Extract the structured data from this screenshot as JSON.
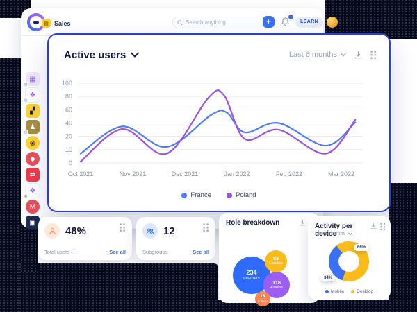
{
  "topbar": {
    "app_label": "Sales",
    "search_placeholder": "Search anything",
    "plus_label": "+",
    "learn_label": "LEARN",
    "notification_count": "1"
  },
  "sidebar": {
    "icons": [
      {
        "name": "app-icon-boards",
        "bg": "#efe9fa",
        "fg": "#8b5cf6",
        "glyph": "▦",
        "shape": "rounded",
        "badge": "clock"
      },
      {
        "name": "app-icon-blocks",
        "bg": "#ffffff",
        "fg": "#a855f7",
        "glyph": "❖",
        "shape": "rounded",
        "badge": "clock"
      },
      {
        "name": "app-icon-game",
        "bg": "#ffd333",
        "fg": "#1c1c1c",
        "glyph": "▞",
        "shape": "rounded",
        "badge": ""
      },
      {
        "name": "app-icon-money",
        "bg": "#a68f3d",
        "fg": "#ffffff",
        "glyph": "♟",
        "shape": "rounded",
        "badge": "clock"
      },
      {
        "name": "app-icon-swirl",
        "bg": "#ffd333",
        "fg": "#1c1c1c",
        "glyph": "֎",
        "shape": "circle",
        "badge": ""
      },
      {
        "name": "app-icon-media",
        "bg": "#e8505b",
        "fg": "#ffffff",
        "glyph": "◆",
        "shape": "circle",
        "badge": ""
      },
      {
        "name": "app-icon-shuffle",
        "bg": "#ee3b4b",
        "fg": "#ffffff",
        "glyph": "⇄",
        "shape": "rounded",
        "badge": ""
      },
      {
        "name": "app-icon-puzzle",
        "bg": "#ffffff",
        "fg": "#8b5cf6",
        "glyph": "❖",
        "shape": "rounded",
        "badge": "lock"
      },
      {
        "name": "app-icon-mail",
        "bg": "#e8505b",
        "fg": "#ffffff",
        "glyph": "M",
        "shape": "circle",
        "badge": ""
      },
      {
        "name": "app-icon-navy",
        "bg": "#1d2b4f",
        "fg": "#ffffff",
        "glyph": "▣",
        "shape": "rounded",
        "badge": ""
      }
    ]
  },
  "chart_card": {
    "title": "Active users",
    "range_label": "Last 6 months"
  },
  "chart_data": {
    "type": "line",
    "title": "Active users",
    "x_ticks": [
      "Oct 2021",
      "Nov 2021",
      "Dec 2021",
      "Jan 2022",
      "Feb 2022",
      "Mar 2022"
    ],
    "y_ticks": [
      0,
      10,
      20,
      40,
      60,
      80,
      100
    ],
    "y_axis_note": "tick labels 0,10,20,40,60,80,100 are evenly spaced (non-linear axis)",
    "grid": "horizontal",
    "legend_position": "bottom-center",
    "series": [
      {
        "name": "France",
        "color": "#4e7cf6",
        "points": [
          [
            0,
            7
          ],
          [
            0.8,
            35
          ],
          [
            1.65,
            12
          ],
          [
            2.5,
            52
          ],
          [
            2.8,
            56
          ],
          [
            3.15,
            26
          ],
          [
            3.8,
            40
          ],
          [
            4.7,
            13
          ],
          [
            5.27,
            41
          ]
        ]
      },
      {
        "name": "Poland",
        "color": "#9b51e0",
        "points": [
          [
            0,
            1
          ],
          [
            0.8,
            31
          ],
          [
            1.65,
            7
          ],
          [
            2.45,
            78
          ],
          [
            2.75,
            82
          ],
          [
            3.15,
            18
          ],
          [
            3.8,
            30
          ],
          [
            4.7,
            7
          ],
          [
            5.27,
            45
          ]
        ]
      }
    ]
  },
  "stat_cards": [
    {
      "value": "48%",
      "label": "Total users",
      "link": "See all",
      "icon": "user-icon",
      "icon_bg": "#fdeadd",
      "icon_color": "#f2946a"
    },
    {
      "value": "12",
      "label": "Subgroups",
      "link": "See all",
      "icon": "users-icon",
      "icon_bg": "#dce8fd",
      "icon_color": "#3a6ff7"
    }
  ],
  "role_card": {
    "title": "Role breakdown",
    "bubbles": [
      {
        "value": "234",
        "label": "Learners",
        "color": "#2f6bff"
      },
      {
        "value": "53",
        "label": "Coaches",
        "color": "#fbbb1b"
      },
      {
        "value": "118",
        "label": "Admins",
        "color": "#9c5df2"
      },
      {
        "value": "18",
        "label": "Authors",
        "color": "#fb8351"
      }
    ]
  },
  "device_card": {
    "title": "Activity per device",
    "range_label": "Last 6 months",
    "slices": [
      {
        "label": "Desktop",
        "value": 66,
        "color": "#fbbb1b"
      },
      {
        "label": "Mobile",
        "value": 34,
        "color": "#3a6ff7"
      }
    ]
  }
}
